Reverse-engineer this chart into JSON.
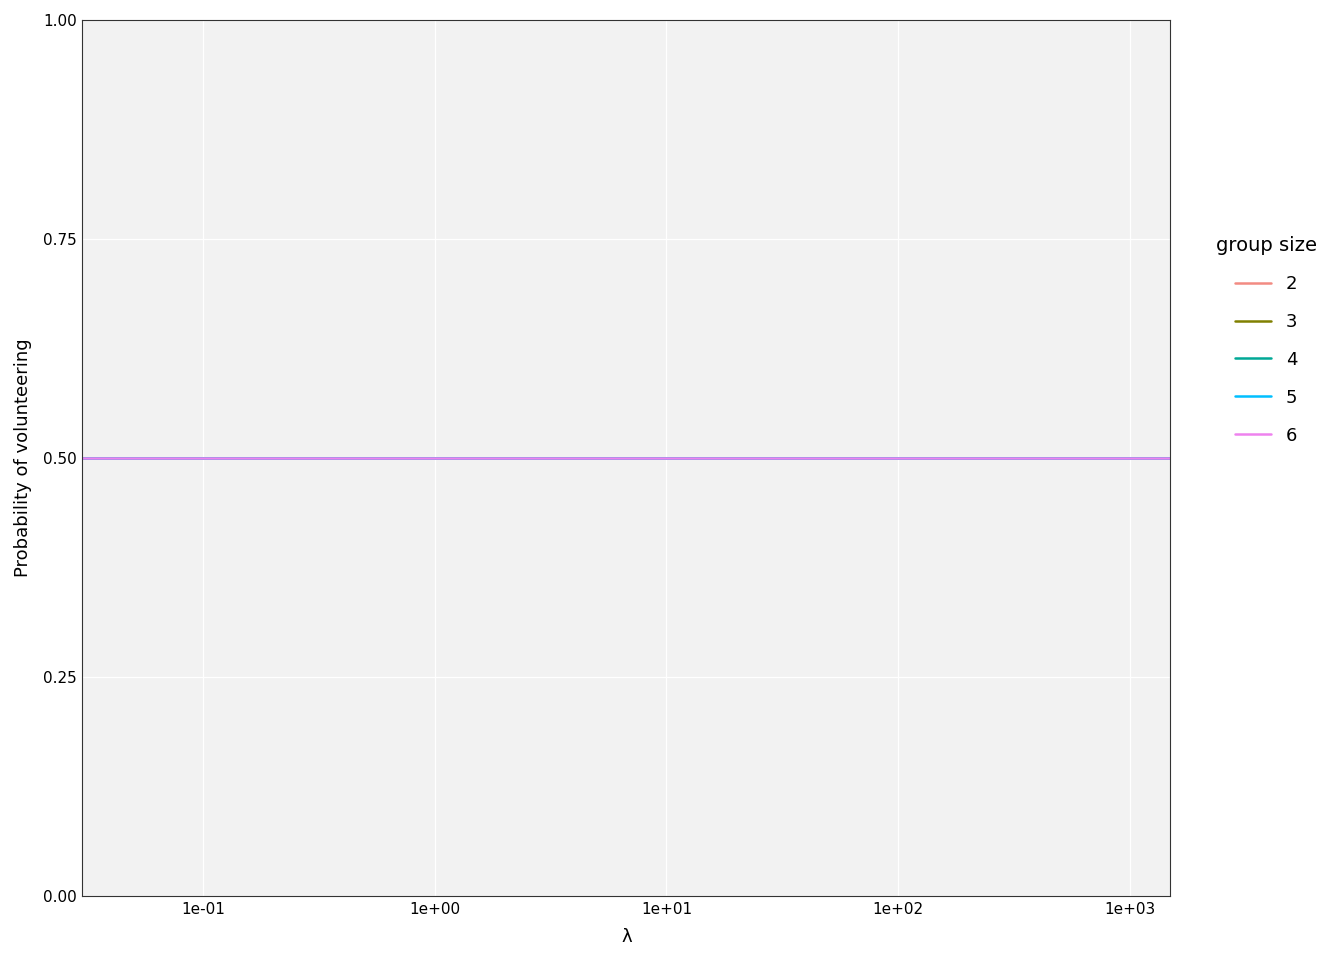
{
  "V": 1.0,
  "c": 0.1,
  "L": 0.2,
  "group_sizes": [
    2,
    3,
    4,
    5,
    6
  ],
  "colors": [
    "#F28B82",
    "#808000",
    "#00A896",
    "#00BFFF",
    "#EE82EE"
  ],
  "lambda_min": 0.03,
  "lambda_max": 1500,
  "n_lambda": 600,
  "ylim": [
    0.0,
    1.0
  ],
  "xlabel": "λ",
  "ylabel": "Probability of volunteering",
  "legend_title": "group size",
  "panel_bg": "#F2F2F2",
  "outer_bg": "#FFFFFF",
  "grid_color": "#FFFFFF",
  "border_color": "#333333",
  "line_width": 1.8,
  "axis_fontsize": 13,
  "legend_fontsize": 13,
  "tick_fontsize": 11,
  "tick_color": "#4C72B0"
}
